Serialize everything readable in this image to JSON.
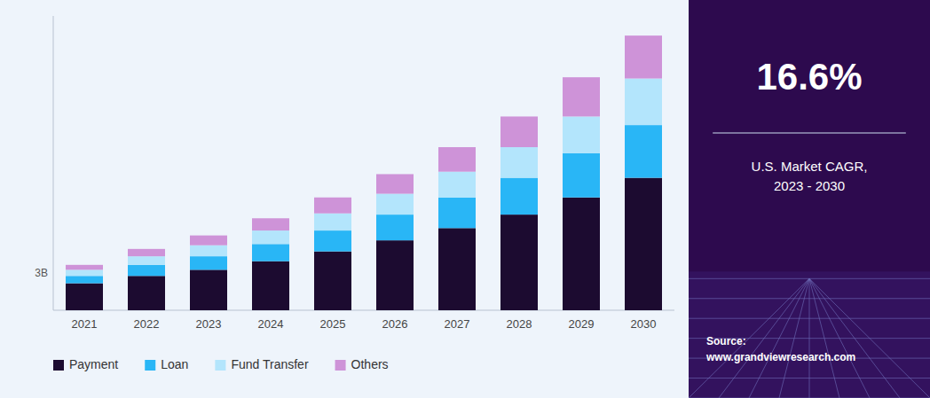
{
  "chart_data": {
    "type": "bar",
    "stacked": true,
    "categories": [
      "2021",
      "2022",
      "2023",
      "2024",
      "2025",
      "2026",
      "2027",
      "2028",
      "2029",
      "2030"
    ],
    "series": [
      {
        "name": "Payment",
        "color": "#1c0b30",
        "values": [
          2.2,
          2.8,
          3.3,
          4.0,
          4.8,
          5.7,
          6.7,
          7.8,
          9.2,
          10.8
        ]
      },
      {
        "name": "Loan",
        "color": "#29b6f6",
        "values": [
          0.6,
          0.9,
          1.1,
          1.4,
          1.7,
          2.1,
          2.5,
          3.0,
          3.6,
          4.3
        ]
      },
      {
        "name": "Fund Transfer",
        "color": "#b3e5fc",
        "values": [
          0.5,
          0.7,
          0.9,
          1.1,
          1.4,
          1.7,
          2.1,
          2.5,
          3.0,
          3.8
        ]
      },
      {
        "name": "Others",
        "color": "#ce93d8",
        "values": [
          0.4,
          0.6,
          0.8,
          1.0,
          1.3,
          1.6,
          2.0,
          2.5,
          3.2,
          3.5
        ]
      }
    ],
    "ylim": [
      0,
      24
    ],
    "yticks": [],
    "tick_labels": "x",
    "grid": false,
    "legend": "bottom",
    "annotations": [
      {
        "text": "3B",
        "y": 3
      },
      {
        "text": "16.6%"
      },
      {
        "text": "U.S. Market CAGR,\n2023 - 2030"
      },
      {
        "text": "Source:\nwww.grandviewresearch.com"
      }
    ]
  }
}
